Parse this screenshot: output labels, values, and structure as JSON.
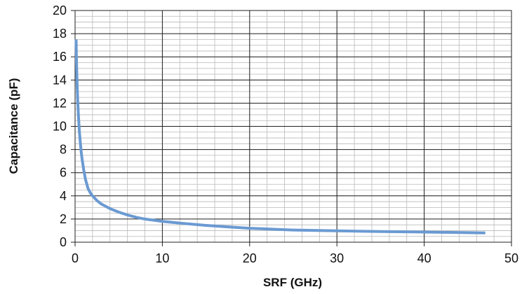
{
  "chart_data": {
    "type": "line",
    "title": "",
    "xlabel": "SRF (GHz)",
    "ylabel": "Capacitance (pF)",
    "xlim": [
      0,
      50
    ],
    "ylim": [
      0,
      20
    ],
    "x_ticks": [
      0,
      10,
      20,
      30,
      40,
      50
    ],
    "y_ticks": [
      0,
      2,
      4,
      6,
      8,
      10,
      12,
      14,
      16,
      18,
      20
    ],
    "x_minor_step": 2,
    "y_minor_step": 0.5,
    "grid": true,
    "series": [
      {
        "color": "#6a9ad2",
        "points": [
          [
            0.12,
            17.5
          ],
          [
            0.15,
            16.0
          ],
          [
            0.2,
            14.5
          ],
          [
            0.25,
            13.3
          ],
          [
            0.3,
            12.2
          ],
          [
            0.4,
            10.7
          ],
          [
            0.5,
            9.5
          ],
          [
            0.6,
            8.6
          ],
          [
            0.7,
            7.8
          ],
          [
            0.8,
            7.2
          ],
          [
            1.0,
            6.2
          ],
          [
            1.2,
            5.4
          ],
          [
            1.5,
            4.6
          ],
          [
            1.8,
            4.2
          ],
          [
            2.0,
            4.0
          ],
          [
            2.5,
            3.6
          ],
          [
            3.0,
            3.3
          ],
          [
            4.0,
            2.9
          ],
          [
            5.0,
            2.6
          ],
          [
            6.0,
            2.35
          ],
          [
            7.0,
            2.15
          ],
          [
            8.0,
            2.0
          ],
          [
            10.0,
            1.8
          ],
          [
            12.0,
            1.65
          ],
          [
            15.0,
            1.45
          ],
          [
            18.0,
            1.3
          ],
          [
            20.0,
            1.2
          ],
          [
            25.0,
            1.05
          ],
          [
            30.0,
            0.98
          ],
          [
            35.0,
            0.92
          ],
          [
            40.0,
            0.88
          ],
          [
            45.0,
            0.82
          ],
          [
            47.0,
            0.8
          ]
        ]
      }
    ]
  }
}
